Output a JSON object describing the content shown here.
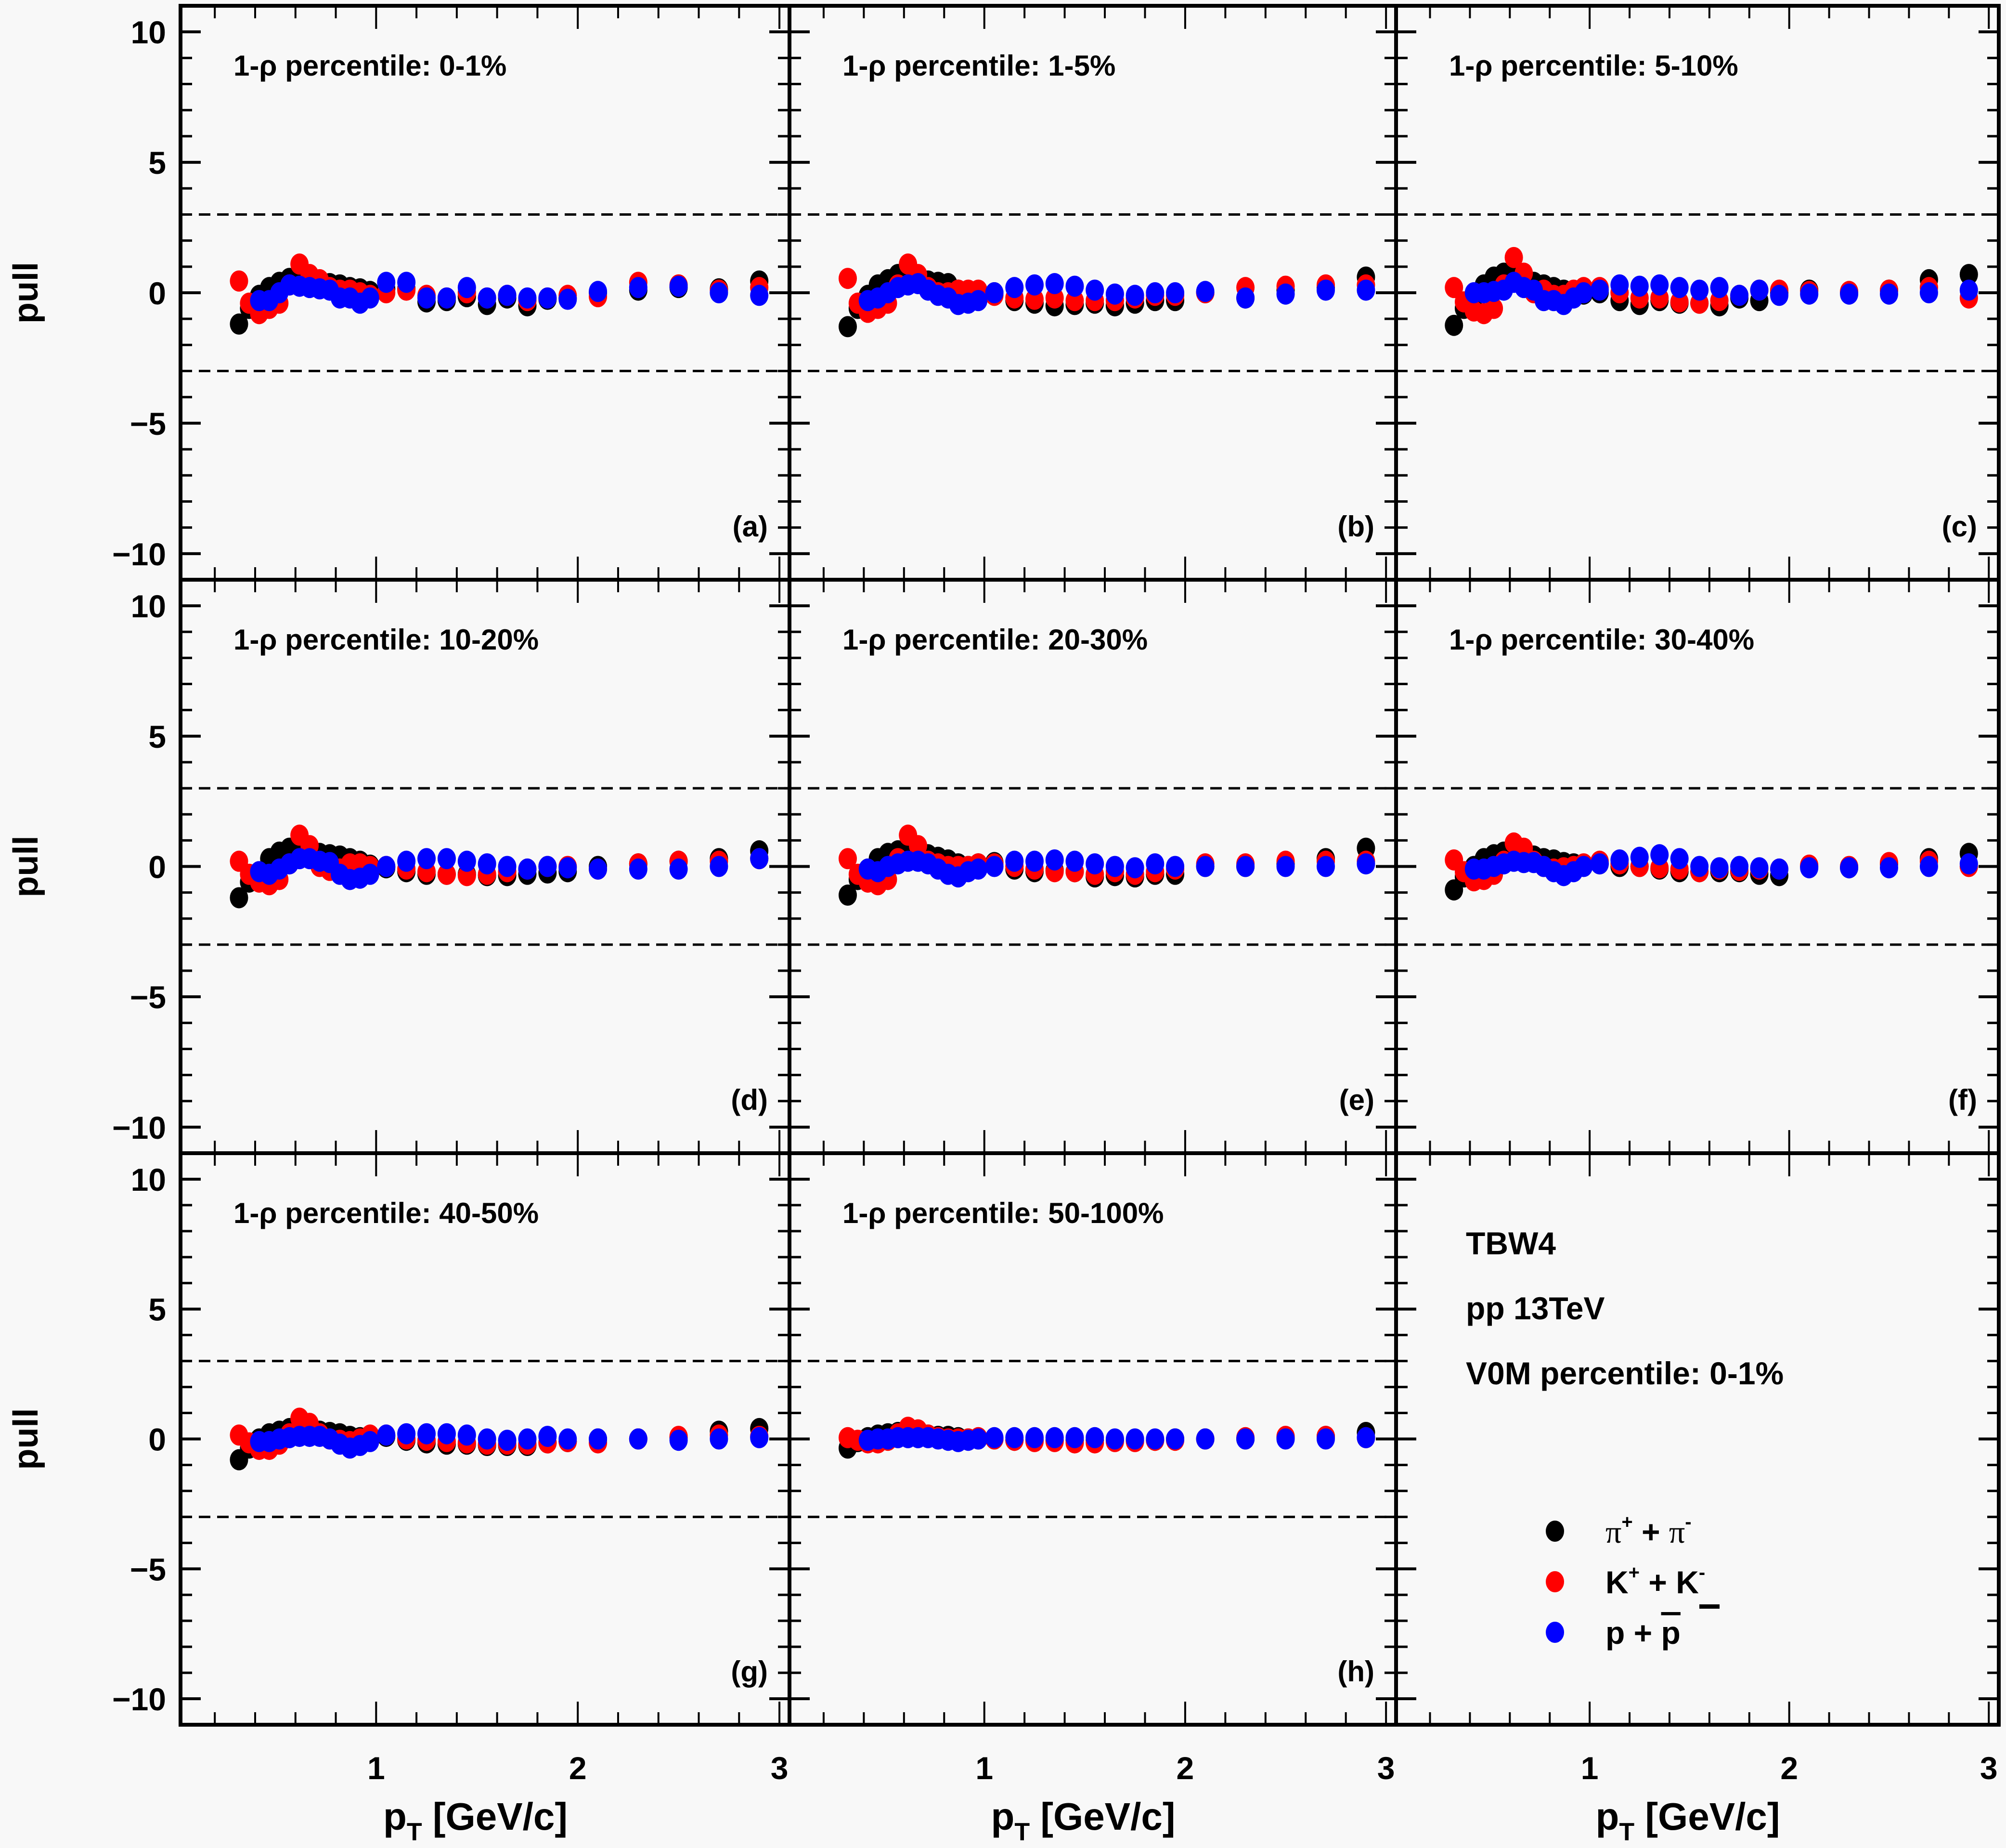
{
  "figure": {
    "ylabel": "pull",
    "xlabel_main": "p",
    "xlabel_sub": "T",
    "xlabel_unit": " [GeV/c]",
    "info": {
      "model": "TBW4",
      "system": "pp 13TeV",
      "selection": "V0M percentile: 0-1%"
    },
    "legend": [
      {
        "key": "pi",
        "label_main": "π",
        "sup1": "+",
        "mid": " + ",
        "label2": "π",
        "sup2": "-",
        "color": "#000000"
      },
      {
        "key": "K",
        "label_main": "K",
        "sup1": "+",
        "mid": " + ",
        "label2": "K",
        "sup2": "-",
        "color": "#ff0000"
      },
      {
        "key": "p",
        "label_main": "p",
        "sup1": "",
        "mid": " + ",
        "label2": "p",
        "sup2": "",
        "overline2": true,
        "color": "#0000ff"
      }
    ]
  },
  "chart_data": {
    "type": "scatter",
    "layout": "3x3 grid, shared axes, last cell holds legend/info",
    "xlabel": "p_T [GeV/c]",
    "ylabel": "pull",
    "xlim": [
      0.03,
      3.05
    ],
    "ylim": [
      -11,
      11
    ],
    "xticks": [
      1,
      2,
      3
    ],
    "yticks": [
      -10,
      -5,
      0,
      5,
      10
    ],
    "ytick_labels": [
      "−10",
      "−5",
      "0",
      "5",
      "10"
    ],
    "reference_lines": [
      3,
      -3
    ],
    "reference_line_style": "dashed",
    "series_names": [
      "π⁺ + π⁻",
      "K⁺ + K⁻",
      "p + p̄"
    ],
    "series_colors": [
      "#000000",
      "#ff0000",
      "#0000ff"
    ],
    "x": [
      0.32,
      0.37,
      0.42,
      0.47,
      0.52,
      0.57,
      0.62,
      0.67,
      0.72,
      0.77,
      0.82,
      0.87,
      0.92,
      0.97,
      1.05,
      1.15,
      1.25,
      1.35,
      1.45,
      1.55,
      1.65,
      1.75,
      1.85,
      1.95,
      2.1,
      2.3,
      2.5,
      2.7,
      2.9
    ],
    "panels": [
      {
        "title": "1-ρ percentile: 0-1%",
        "tag": "(a)",
        "series": [
          {
            "name": "pi",
            "values": [
              -1.2,
              -0.6,
              -0.1,
              0.2,
              0.4,
              0.55,
              0.6,
              0.55,
              0.45,
              0.35,
              0.3,
              0.2,
              0.15,
              0.05,
              0.15,
              0.15,
              -0.35,
              -0.3,
              -0.15,
              -0.45,
              -0.2,
              -0.5,
              -0.25,
              -0.2,
              0.0,
              0.1,
              0.2,
              0.15,
              0.45
            ]
          },
          {
            "name": "K",
            "values": [
              0.45,
              -0.4,
              -0.8,
              -0.6,
              -0.4,
              0.3,
              1.1,
              0.7,
              0.5,
              0.2,
              0.1,
              0.1,
              0.0,
              -0.1,
              0.0,
              0.1,
              -0.1,
              -0.2,
              0.0,
              -0.2,
              -0.1,
              -0.3,
              -0.2,
              -0.1,
              -0.15,
              0.4,
              0.3,
              0.1,
              0.2
            ]
          },
          {
            "name": "p",
            "values": [
              null,
              null,
              -0.3,
              -0.3,
              0.0,
              0.3,
              0.25,
              0.2,
              0.15,
              0.1,
              -0.2,
              -0.2,
              -0.4,
              -0.2,
              0.4,
              0.4,
              -0.2,
              -0.2,
              0.2,
              -0.2,
              -0.1,
              -0.2,
              -0.2,
              -0.25,
              0.05,
              0.2,
              0.25,
              0.0,
              -0.1
            ]
          }
        ]
      },
      {
        "title": "1-ρ percentile: 1-5%",
        "tag": "(b)",
        "series": [
          {
            "name": "pi",
            "values": [
              -1.3,
              -0.6,
              -0.1,
              0.3,
              0.5,
              0.7,
              0.7,
              0.55,
              0.45,
              0.4,
              0.35,
              0.1,
              0.0,
              -0.1,
              0.0,
              -0.3,
              -0.4,
              -0.5,
              -0.45,
              -0.4,
              -0.5,
              -0.4,
              -0.3,
              -0.3,
              0.0,
              -0.2,
              0.1,
              0.2,
              0.6
            ]
          },
          {
            "name": "K",
            "values": [
              0.55,
              -0.4,
              -0.75,
              -0.6,
              -0.4,
              0.3,
              1.1,
              0.7,
              0.2,
              0.0,
              0.0,
              0.1,
              0.1,
              0.1,
              -0.1,
              -0.2,
              -0.25,
              -0.2,
              -0.3,
              -0.3,
              -0.3,
              -0.2,
              -0.1,
              -0.1,
              0.0,
              0.2,
              0.25,
              0.3,
              0.3
            ]
          },
          {
            "name": "p",
            "values": [
              null,
              null,
              -0.3,
              -0.2,
              0.0,
              0.2,
              0.3,
              0.35,
              0.1,
              -0.1,
              -0.2,
              -0.45,
              -0.4,
              -0.3,
              0.0,
              0.2,
              0.3,
              0.35,
              0.25,
              0.1,
              -0.05,
              -0.1,
              0.0,
              0.0,
              0.05,
              -0.2,
              -0.05,
              0.1,
              0.1
            ]
          }
        ]
      },
      {
        "title": "1-ρ percentile: 5-10%",
        "tag": "(c)",
        "series": [
          {
            "name": "pi",
            "values": [
              -1.25,
              -0.6,
              -0.2,
              0.3,
              0.6,
              0.75,
              0.75,
              0.6,
              0.4,
              0.3,
              0.2,
              0.1,
              0.0,
              -0.05,
              0.0,
              -0.3,
              -0.45,
              -0.3,
              -0.4,
              -0.4,
              -0.5,
              -0.2,
              -0.3,
              0.0,
              0.1,
              0.0,
              0.1,
              0.5,
              0.7
            ]
          },
          {
            "name": "K",
            "values": [
              0.2,
              -0.35,
              -0.7,
              -0.8,
              -0.6,
              0.3,
              1.35,
              0.75,
              0.0,
              0.1,
              -0.1,
              -0.1,
              0.1,
              0.2,
              0.2,
              0.0,
              -0.2,
              -0.2,
              -0.35,
              -0.4,
              -0.3,
              -0.1,
              0.1,
              0.1,
              0.05,
              0.05,
              0.1,
              0.2,
              -0.2
            ]
          },
          {
            "name": "p",
            "values": [
              null,
              null,
              0.0,
              0.0,
              0.05,
              0.1,
              0.4,
              0.2,
              0.1,
              -0.3,
              -0.3,
              -0.45,
              -0.2,
              0.0,
              0.1,
              0.3,
              0.25,
              0.3,
              0.2,
              0.1,
              0.2,
              -0.1,
              0.1,
              -0.1,
              -0.05,
              -0.05,
              -0.05,
              0.0,
              0.1
            ]
          }
        ]
      },
      {
        "title": "1-ρ percentile: 10-20%",
        "tag": "(d)",
        "series": [
          {
            "name": "pi",
            "values": [
              -1.2,
              -0.6,
              -0.2,
              0.3,
              0.55,
              0.7,
              0.75,
              0.65,
              0.5,
              0.45,
              0.4,
              0.3,
              0.2,
              0.05,
              -0.05,
              -0.2,
              -0.3,
              -0.3,
              -0.3,
              -0.35,
              -0.35,
              -0.3,
              -0.25,
              -0.2,
              0.0,
              0.1,
              0.2,
              0.3,
              0.6
            ]
          },
          {
            "name": "K",
            "values": [
              0.2,
              -0.3,
              -0.6,
              -0.7,
              -0.5,
              0.1,
              1.2,
              0.8,
              0.0,
              -0.15,
              -0.1,
              0.1,
              0.1,
              0.0,
              0.0,
              -0.1,
              -0.2,
              -0.3,
              -0.35,
              -0.3,
              -0.2,
              -0.1,
              0.0,
              0.0,
              -0.1,
              0.1,
              0.2,
              0.2,
              0.3
            ]
          },
          {
            "name": "p",
            "values": [
              null,
              null,
              -0.2,
              -0.3,
              -0.1,
              0.1,
              0.3,
              0.3,
              0.2,
              0.15,
              -0.3,
              -0.5,
              -0.45,
              -0.3,
              0.0,
              0.2,
              0.3,
              0.3,
              0.2,
              0.1,
              0.0,
              -0.1,
              0.0,
              -0.05,
              -0.1,
              -0.1,
              -0.1,
              0.0,
              0.3
            ]
          }
        ]
      },
      {
        "title": "1-ρ percentile: 20-30%",
        "tag": "(e)",
        "series": [
          {
            "name": "pi",
            "values": [
              -1.1,
              -0.5,
              -0.1,
              0.3,
              0.5,
              0.6,
              0.65,
              0.6,
              0.45,
              0.35,
              0.25,
              0.1,
              0.0,
              0.1,
              0.15,
              -0.1,
              -0.2,
              -0.15,
              -0.2,
              -0.4,
              -0.35,
              -0.4,
              -0.3,
              -0.3,
              0.0,
              0.0,
              0.1,
              0.3,
              0.7
            ]
          },
          {
            "name": "K",
            "values": [
              0.3,
              -0.3,
              -0.6,
              -0.7,
              -0.5,
              0.3,
              1.2,
              0.8,
              0.2,
              0.1,
              0.0,
              0.0,
              0.0,
              0.1,
              0.1,
              0.0,
              -0.1,
              -0.2,
              -0.2,
              -0.3,
              -0.2,
              -0.3,
              -0.2,
              -0.1,
              0.1,
              0.1,
              0.2,
              0.2,
              0.2
            ]
          },
          {
            "name": "p",
            "values": [
              null,
              null,
              -0.1,
              -0.2,
              0.0,
              0.1,
              0.2,
              0.2,
              0.1,
              -0.1,
              -0.3,
              -0.4,
              -0.2,
              -0.1,
              0.0,
              0.2,
              0.2,
              0.25,
              0.2,
              0.1,
              0.0,
              -0.05,
              0.1,
              0.0,
              0.0,
              0.0,
              0.0,
              0.0,
              0.1
            ]
          }
        ]
      },
      {
        "title": "1-ρ percentile: 30-40%",
        "tag": "(f)",
        "series": [
          {
            "name": "pi",
            "values": [
              -0.9,
              -0.4,
              0.0,
              0.3,
              0.45,
              0.55,
              0.55,
              0.5,
              0.4,
              0.3,
              0.25,
              0.15,
              0.1,
              0.05,
              0.1,
              0.0,
              0.0,
              -0.1,
              -0.2,
              -0.2,
              -0.2,
              -0.2,
              -0.3,
              -0.35,
              0.0,
              -0.05,
              0.1,
              0.3,
              0.5
            ]
          },
          {
            "name": "K",
            "values": [
              0.25,
              -0.2,
              -0.55,
              -0.5,
              -0.3,
              0.2,
              0.9,
              0.7,
              0.2,
              0.0,
              -0.1,
              -0.05,
              0.0,
              0.1,
              0.2,
              0.1,
              0.0,
              -0.05,
              -0.1,
              -0.2,
              -0.1,
              -0.15,
              -0.1,
              -0.1,
              0.05,
              0.0,
              0.15,
              0.2,
              0.0
            ]
          },
          {
            "name": "p",
            "values": [
              null,
              null,
              -0.1,
              -0.1,
              0.0,
              0.1,
              0.2,
              0.15,
              0.15,
              0.0,
              -0.2,
              -0.35,
              -0.2,
              0.0,
              0.1,
              0.25,
              0.35,
              0.45,
              0.3,
              0.0,
              -0.05,
              0.0,
              -0.05,
              -0.1,
              -0.05,
              -0.05,
              -0.05,
              0.0,
              0.1
            ]
          }
        ]
      },
      {
        "title": "1-ρ percentile: 40-50%",
        "tag": "(g)",
        "series": [
          {
            "name": "pi",
            "values": [
              -0.8,
              -0.35,
              0.0,
              0.2,
              0.3,
              0.4,
              0.45,
              0.35,
              0.3,
              0.25,
              0.2,
              0.1,
              0.05,
              0.0,
              0.1,
              -0.05,
              -0.15,
              -0.2,
              -0.2,
              -0.25,
              -0.25,
              -0.25,
              -0.15,
              -0.1,
              0.0,
              0.0,
              0.05,
              0.3,
              0.4
            ]
          },
          {
            "name": "K",
            "values": [
              0.15,
              -0.15,
              -0.4,
              -0.4,
              -0.2,
              0.2,
              0.8,
              0.6,
              0.2,
              0.0,
              -0.05,
              -0.1,
              0.0,
              0.15,
              0.15,
              0.0,
              -0.05,
              -0.1,
              -0.15,
              -0.2,
              -0.2,
              -0.2,
              -0.15,
              -0.1,
              -0.15,
              0.0,
              0.1,
              0.15,
              0.1
            ]
          },
          {
            "name": "p",
            "values": [
              null,
              null,
              -0.1,
              -0.1,
              0.0,
              0.05,
              0.1,
              0.1,
              0.1,
              0.0,
              -0.2,
              -0.35,
              -0.25,
              -0.1,
              0.15,
              0.2,
              0.2,
              0.2,
              0.15,
              0.0,
              -0.05,
              0.0,
              0.1,
              0.0,
              0.0,
              0.0,
              -0.05,
              0.0,
              0.05
            ]
          }
        ]
      },
      {
        "title": "1-ρ percentile: 50-100%",
        "tag": "(h)",
        "series": [
          {
            "name": "pi",
            "values": [
              -0.35,
              -0.1,
              0.05,
              0.15,
              0.2,
              0.25,
              0.25,
              0.2,
              0.15,
              0.1,
              0.1,
              0.05,
              0.0,
              0.0,
              0.0,
              -0.05,
              -0.05,
              -0.05,
              -0.05,
              -0.05,
              -0.05,
              -0.05,
              -0.05,
              0.0,
              0.0,
              0.0,
              0.05,
              0.1,
              0.25
            ]
          },
          {
            "name": "K",
            "values": [
              0.05,
              -0.05,
              -0.15,
              -0.15,
              -0.05,
              0.2,
              0.45,
              0.35,
              0.15,
              0.05,
              0.0,
              0.0,
              0.0,
              0.05,
              0.0,
              -0.05,
              -0.1,
              -0.1,
              -0.15,
              -0.15,
              -0.1,
              -0.1,
              -0.05,
              -0.05,
              0.0,
              0.05,
              0.1,
              0.1,
              0.05
            ]
          },
          {
            "name": "p",
            "values": [
              null,
              null,
              -0.05,
              0.0,
              0.0,
              0.05,
              0.05,
              0.05,
              0.05,
              0.0,
              -0.05,
              -0.1,
              -0.05,
              0.0,
              0.05,
              0.05,
              0.05,
              0.05,
              0.05,
              0.05,
              0.0,
              0.0,
              0.0,
              0.0,
              0.0,
              0.0,
              0.0,
              0.0,
              0.05
            ]
          }
        ]
      }
    ]
  }
}
